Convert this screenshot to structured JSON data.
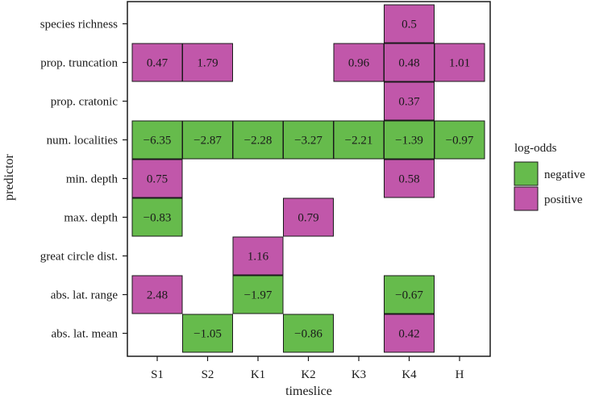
{
  "chart_data": {
    "type": "heatmap",
    "xlabel": "timeslice",
    "ylabel": "predictor",
    "x_categories": [
      "S1",
      "S2",
      "K1",
      "K2",
      "K3",
      "K4",
      "H"
    ],
    "y_categories": [
      "species richness",
      "prop. truncation",
      "prop. cratonic",
      "num. localities",
      "min. depth",
      "max. depth",
      "great circle dist.",
      "abs. lat. range",
      "abs. lat. mean"
    ],
    "cells": [
      {
        "x": "K4",
        "y": "species richness",
        "value": 0.5,
        "label": "0.5"
      },
      {
        "x": "S1",
        "y": "prop. truncation",
        "value": 0.47,
        "label": "0.47"
      },
      {
        "x": "S2",
        "y": "prop. truncation",
        "value": 1.79,
        "label": "1.79"
      },
      {
        "x": "K3",
        "y": "prop. truncation",
        "value": 0.96,
        "label": "0.96"
      },
      {
        "x": "K4",
        "y": "prop. truncation",
        "value": 0.48,
        "label": "0.48"
      },
      {
        "x": "H",
        "y": "prop. truncation",
        "value": 1.01,
        "label": "1.01"
      },
      {
        "x": "K4",
        "y": "prop. cratonic",
        "value": 0.37,
        "label": "0.37"
      },
      {
        "x": "S1",
        "y": "num. localities",
        "value": -6.35,
        "label": "−6.35"
      },
      {
        "x": "S2",
        "y": "num. localities",
        "value": -2.87,
        "label": "−2.87"
      },
      {
        "x": "K1",
        "y": "num. localities",
        "value": -2.28,
        "label": "−2.28"
      },
      {
        "x": "K2",
        "y": "num. localities",
        "value": -3.27,
        "label": "−3.27"
      },
      {
        "x": "K3",
        "y": "num. localities",
        "value": -2.21,
        "label": "−2.21"
      },
      {
        "x": "K4",
        "y": "num. localities",
        "value": -1.39,
        "label": "−1.39"
      },
      {
        "x": "H",
        "y": "num. localities",
        "value": -0.97,
        "label": "−0.97"
      },
      {
        "x": "S1",
        "y": "min. depth",
        "value": 0.75,
        "label": "0.75"
      },
      {
        "x": "K4",
        "y": "min. depth",
        "value": 0.58,
        "label": "0.58"
      },
      {
        "x": "S1",
        "y": "max. depth",
        "value": -0.83,
        "label": "−0.83"
      },
      {
        "x": "K2",
        "y": "max. depth",
        "value": 0.79,
        "label": "0.79"
      },
      {
        "x": "K1",
        "y": "great circle dist.",
        "value": 1.16,
        "label": "1.16"
      },
      {
        "x": "S1",
        "y": "abs. lat. range",
        "value": 2.48,
        "label": "2.48"
      },
      {
        "x": "K1",
        "y": "abs. lat. range",
        "value": -1.97,
        "label": "−1.97"
      },
      {
        "x": "K4",
        "y": "abs. lat. range",
        "value": -0.67,
        "label": "−0.67"
      },
      {
        "x": "S2",
        "y": "abs. lat. mean",
        "value": -1.05,
        "label": "−1.05"
      },
      {
        "x": "K2",
        "y": "abs. lat. mean",
        "value": -0.86,
        "label": "−0.86"
      },
      {
        "x": "K4",
        "y": "abs. lat. mean",
        "value": 0.42,
        "label": "0.42"
      }
    ],
    "legend": {
      "title": "log-odds",
      "position": "right",
      "entries": [
        {
          "label": "negative",
          "color": "#66bb4c"
        },
        {
          "label": "positive",
          "color": "#c157aa"
        }
      ]
    },
    "grid": false
  }
}
